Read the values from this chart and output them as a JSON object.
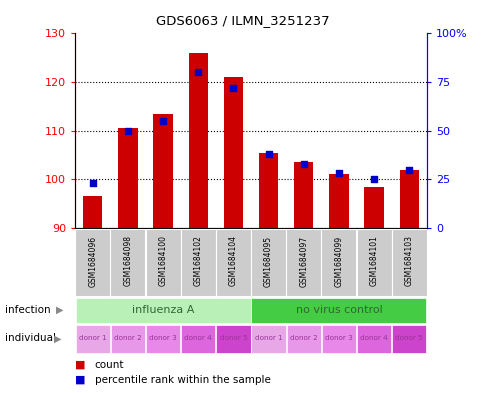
{
  "title": "GDS6063 / ILMN_3251237",
  "samples": [
    "GSM1684096",
    "GSM1684098",
    "GSM1684100",
    "GSM1684102",
    "GSM1684104",
    "GSM1684095",
    "GSM1684097",
    "GSM1684099",
    "GSM1684101",
    "GSM1684103"
  ],
  "counts": [
    96.5,
    110.5,
    113.5,
    126.0,
    121.0,
    105.5,
    103.5,
    101.0,
    98.5,
    102.0
  ],
  "percentile_ranks": [
    23,
    50,
    55,
    80,
    72,
    38,
    33,
    28,
    25,
    30
  ],
  "ylim_left": [
    90,
    130
  ],
  "ylim_right": [
    0,
    100
  ],
  "yticks_left": [
    90,
    100,
    110,
    120,
    130
  ],
  "yticks_right": [
    0,
    25,
    50,
    75,
    100
  ],
  "infection_groups": [
    {
      "label": "influenza A",
      "start": 0,
      "end": 5,
      "color": "#b8f0b8"
    },
    {
      "label": "no virus control",
      "start": 5,
      "end": 10,
      "color": "#44cc44"
    }
  ],
  "donors": [
    "donor 1",
    "donor 2",
    "donor 3",
    "donor 4",
    "donor 5",
    "donor 1",
    "donor 2",
    "donor 3",
    "donor 4",
    "donor 5"
  ],
  "donor_colors": [
    "#e8a8e8",
    "#e898e8",
    "#e888e8",
    "#dd66dd",
    "#cc44cc",
    "#e8a8e8",
    "#e898e8",
    "#e888e8",
    "#dd66dd",
    "#cc44cc"
  ],
  "bar_color": "#cc0000",
  "percentile_color": "#0000cc",
  "bar_bottom": 90,
  "bar_width": 0.55,
  "legend_count_color": "#cc0000",
  "legend_percentile_color": "#0000cc",
  "infection_label_color": "#336633",
  "individual_label_color": "#993399",
  "sample_box_color": "#cccccc",
  "sample_box_edge_color": "#aaaaaa"
}
